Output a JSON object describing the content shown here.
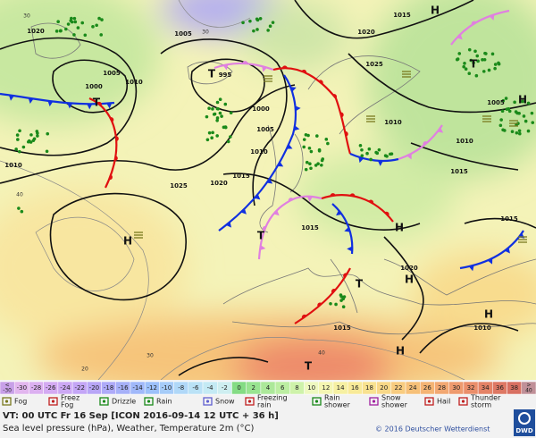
{
  "map": {
    "pressure_labels": [
      "1020",
      "1005",
      "1005",
      "1000",
      "1010",
      "995",
      "1000",
      "1005",
      "1010",
      "1020",
      "1025",
      "1015",
      "1010",
      "1015",
      "1020",
      "1025",
      "1015",
      "1005",
      "1010",
      "1015",
      "1015",
      "1020",
      "1015",
      "1010",
      "1010"
    ],
    "center_labels": [
      "H",
      "H",
      "H",
      "H",
      "H",
      "H",
      "H",
      "T",
      "T",
      "T",
      "T",
      "T",
      "T"
    ],
    "temperature_labels": [
      "30",
      "40",
      "30",
      "20",
      "30",
      "40"
    ]
  },
  "temperature_scale": {
    "min_label": [
      "<",
      "-30"
    ],
    "values": [
      -30,
      -28,
      -26,
      -24,
      -22,
      -20,
      -18,
      -16,
      -14,
      -12,
      -10,
      -8,
      -6,
      -4,
      -2,
      0,
      2,
      4,
      6,
      8,
      10,
      12,
      14,
      16,
      18,
      20,
      22,
      24,
      26,
      28,
      30,
      32,
      34,
      36,
      38
    ],
    "max_label": [
      ">",
      "40"
    ],
    "colors": [
      "#e2b6ee",
      "#dcb0f0",
      "#d4aaf2",
      "#cca8f4",
      "#c4a6f6",
      "#b8a6f6",
      "#aeaaf8",
      "#a6b0f8",
      "#a0b8fa",
      "#9cc0fa",
      "#a6ccf8",
      "#b0d8f8",
      "#bae2f6",
      "#c4eaf4",
      "#ceeef0",
      "#84dc84",
      "#98e490",
      "#ace89a",
      "#bceea2",
      "#cef2aa",
      "#eef8c0",
      "#f4f6b2",
      "#f6f0a2",
      "#f8ea98",
      "#f8e290",
      "#f8d888",
      "#f8cc80",
      "#f6c078",
      "#f4b474",
      "#f2a872",
      "#ee9a6e",
      "#ea8e6a",
      "#e48266",
      "#de7864",
      "#d87062"
    ]
  },
  "weather_legend": [
    {
      "label": [
        "Fog"
      ]
    },
    {
      "label": [
        "Freez",
        "Fog"
      ]
    },
    {
      "label": [
        "Drizzle"
      ]
    },
    {
      "label": [
        "Rain"
      ]
    },
    {
      "label": [
        "Snow"
      ]
    },
    {
      "label": [
        "Freezing",
        "rain"
      ]
    },
    {
      "label": [
        "Rain",
        "shower"
      ]
    },
    {
      "label": [
        "Snow",
        "shower"
      ]
    },
    {
      "label": [
        "Hail"
      ]
    },
    {
      "label": [
        "Thunder",
        "storm"
      ]
    }
  ],
  "footer": {
    "valid_time": "VT: 00 UTC Fr  16 Sep [ICON 2016-09-14  12 UTC + 36 h]",
    "description": "Sea level pressure (hPa), Weather, Temperature 2m (°C)",
    "copyright": "© 2016 Deutscher Wetterdienst",
    "logo": "DWD"
  }
}
